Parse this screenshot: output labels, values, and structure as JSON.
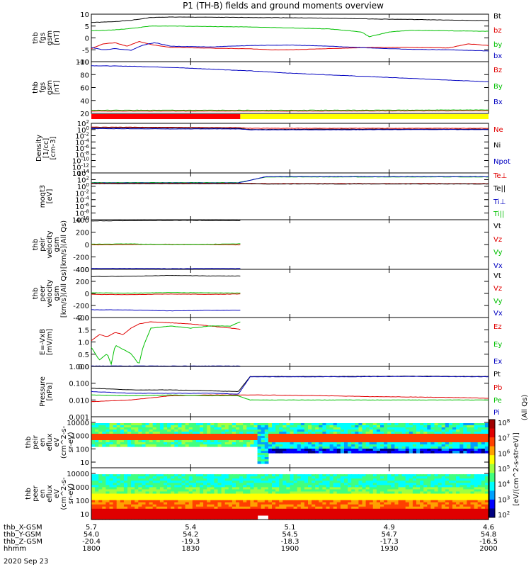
{
  "figure": {
    "title": "P1 (TH-B) fields and ground moments overview",
    "date": "2020 Sep 23",
    "colorbar_label": "[eV/(cm^2-s-str-eV)]",
    "colorbar_label_right": "(All Qs)",
    "colorbar_ticks": [
      "10^8",
      "10^7",
      "10^6",
      "10^5",
      "10^4",
      "10^3",
      "10^2"
    ]
  },
  "chart_data": [
    {
      "id": "fgs_gsm",
      "type": "line",
      "ylabel": [
        "thb",
        "fgs",
        "gsm",
        "[nT]"
      ],
      "ylim": [
        -10,
        10
      ],
      "yticks": [
        "10",
        "5",
        "0",
        "-5",
        "-10"
      ],
      "legend": [
        {
          "name": "Bt",
          "color": "#000000"
        },
        {
          "name": "bz",
          "color": "#e00000"
        },
        {
          "name": "by",
          "color": "#00c000"
        },
        {
          "name": "bx",
          "color": "#0000c0"
        }
      ],
      "series": [
        {
          "name": "Bt",
          "color": "#000000",
          "x": [
            0,
            0.05,
            0.1,
            0.15,
            0.2,
            0.3,
            0.4,
            0.5,
            0.6,
            0.7,
            0.8,
            0.9,
            1.0
          ],
          "y": [
            6.5,
            6.8,
            7.4,
            8.6,
            8.8,
            8.7,
            8.6,
            8.5,
            8.3,
            8.0,
            7.8,
            7.5,
            7.3
          ]
        },
        {
          "name": "bz",
          "color": "#e00000",
          "x": [
            0,
            0.03,
            0.06,
            0.09,
            0.12,
            0.15,
            0.2,
            0.3,
            0.4,
            0.45,
            0.5,
            0.6,
            0.7,
            0.8,
            0.9,
            0.95,
            1.0
          ],
          "y": [
            -4.5,
            -2.5,
            -2.0,
            -3.5,
            -1.5,
            -2.8,
            -4.0,
            -4.3,
            -4.6,
            -5.0,
            -5.0,
            -4.5,
            -4.0,
            -4.0,
            -4.2,
            -2.5,
            -3.2
          ]
        },
        {
          "name": "by",
          "color": "#00c000",
          "x": [
            0,
            0.05,
            0.1,
            0.15,
            0.2,
            0.3,
            0.4,
            0.5,
            0.6,
            0.68,
            0.7,
            0.75,
            0.8,
            0.9,
            1.0
          ],
          "y": [
            3.0,
            3.3,
            4.0,
            5.0,
            5.0,
            4.8,
            4.6,
            4.2,
            3.8,
            2.5,
            0.5,
            2.5,
            3.2,
            3.0,
            2.8
          ]
        },
        {
          "name": "bx",
          "color": "#0000c0",
          "x": [
            0,
            0.03,
            0.06,
            0.1,
            0.13,
            0.16,
            0.2,
            0.3,
            0.4,
            0.5,
            0.6,
            0.7,
            0.8,
            0.9,
            1.0
          ],
          "y": [
            -4.0,
            -5.0,
            -4.5,
            -5.2,
            -3.0,
            -2.0,
            -3.5,
            -3.8,
            -3.2,
            -3.0,
            -3.5,
            -4.2,
            -4.8,
            -5.0,
            -5.5
          ]
        }
      ]
    },
    {
      "id": "fgs_gsm_dsl",
      "type": "line",
      "ylabel": [
        "thb",
        "fgs",
        "gsm",
        "[nT]"
      ],
      "ylim": [
        10,
        100
      ],
      "yticks": [
        "100",
        "80",
        "60",
        "40",
        "20"
      ],
      "legend": [
        {
          "name": "Bz",
          "color": "#e00000"
        },
        {
          "name": "By",
          "color": "#00c000"
        },
        {
          "name": "Bx",
          "color": "#0000c0"
        }
      ],
      "series": [
        {
          "name": "Bx",
          "color": "#0000c0",
          "x": [
            0,
            0.1,
            0.2,
            0.3,
            0.4,
            0.5,
            0.6,
            0.7,
            0.8,
            0.9,
            1.0
          ],
          "y": [
            93,
            92,
            90,
            87,
            84,
            80,
            77,
            74,
            71,
            68,
            65
          ]
        },
        {
          "name": "By",
          "color": "#00c000",
          "x": [
            0,
            0.5,
            1.0
          ],
          "y": [
            15.5,
            15.5,
            16
          ]
        },
        {
          "name": "Bz",
          "color": "#e00000",
          "x": [
            0,
            0.5,
            1.0
          ],
          "y": [
            14,
            14,
            14.5
          ]
        }
      ]
    },
    {
      "id": "mode_bar",
      "type": "bar",
      "segments": [
        {
          "from": 0,
          "to": 0.375,
          "color": "#ff0000"
        },
        {
          "from": 0.375,
          "to": 1.0,
          "color": "#ffff00"
        }
      ]
    },
    {
      "id": "density",
      "type": "line",
      "ylabel": [
        "Density",
        "[1/cc]",
        "[cm-3]"
      ],
      "ylim": [
        -14,
        2
      ],
      "log": true,
      "yticks": [
        "10^2",
        "10^0",
        "10^-2",
        "10^-4",
        "10^-6",
        "10^-8",
        "10^-10",
        "10^-12",
        "10^-14"
      ],
      "legend": [
        {
          "name": "Ne",
          "color": "#e00000"
        },
        {
          "name": "Ni",
          "color": "#000000"
        },
        {
          "name": "Npot",
          "color": "#0000c0"
        }
      ],
      "series": [
        {
          "name": "Ne",
          "color": "#e00000",
          "x": [
            0,
            0.2,
            0.37,
            0.4,
            0.6,
            0.8,
            1.0
          ],
          "y": [
            0.8,
            0.7,
            0.6,
            0.4,
            0.4,
            0.4,
            0.4
          ]
        },
        {
          "name": "Ni",
          "color": "#000000",
          "x": [
            0,
            0.2,
            0.37,
            0.4,
            0.6,
            0.8,
            1.0
          ],
          "y": [
            0.6,
            0.5,
            0.4,
            0.0,
            0.1,
            0.1,
            0.1
          ]
        },
        {
          "name": "Npot",
          "color": "#0000c0",
          "x": [
            0,
            0.2,
            0.37,
            0.4,
            0.6,
            0.8,
            1.0
          ],
          "y": [
            0.3,
            0.2,
            0.2,
            -0.1,
            -0.1,
            0,
            0
          ]
        }
      ]
    },
    {
      "id": "temperature",
      "type": "line",
      "ylabel": [
        "moqt3",
        "[eV]"
      ],
      "ylim": [
        -10,
        4
      ],
      "log": true,
      "yticks": [
        "10^4",
        "10^2",
        "10^0",
        "10^-2",
        "10^-4",
        "10^-6",
        "10^-8",
        "10^-10"
      ],
      "legend": [
        {
          "name": "Te⊥",
          "color": "#e00000"
        },
        {
          "name": "Te||",
          "color": "#000000"
        },
        {
          "name": "Ti⊥",
          "color": "#0000c0"
        },
        {
          "name": "Ti||",
          "color": "#00c000"
        }
      ],
      "series": [
        {
          "name": "Ti||",
          "color": "#00c000",
          "x": [
            0,
            0.2,
            0.37,
            0.44,
            1.0
          ],
          "y": [
            1.1,
            1.1,
            1.1,
            2.8,
            2.8
          ]
        },
        {
          "name": "Ti⊥",
          "color": "#0000c0",
          "x": [
            0,
            0.2,
            0.37,
            0.44,
            1.0
          ],
          "y": [
            1.0,
            1.0,
            1.0,
            2.9,
            2.9
          ]
        },
        {
          "name": "Te⊥",
          "color": "#e00000",
          "x": [
            0,
            0.2,
            0.37,
            0.44,
            1.0
          ],
          "y": [
            0.9,
            0.9,
            0.9,
            0.8,
            0.8
          ]
        },
        {
          "name": "Te||",
          "color": "#000000",
          "x": [
            0,
            0.2,
            0.37,
            0.44,
            1.0
          ],
          "y": [
            0.8,
            0.8,
            0.8,
            0.7,
            0.7
          ]
        }
      ]
    },
    {
      "id": "peir_velocity",
      "type": "line",
      "ylabel": [
        "thb",
        "peir",
        "velocity",
        "gsm",
        "[km/s](All Qs)"
      ],
      "ylim": [
        -400,
        400
      ],
      "yticks": [
        "400",
        "200",
        "0",
        "-200",
        "-400"
      ],
      "legend": [
        {
          "name": "Vt",
          "color": "#000000"
        },
        {
          "name": "Vz",
          "color": "#e00000"
        },
        {
          "name": "Vy",
          "color": "#00c000"
        },
        {
          "name": "Vx",
          "color": "#0000c0"
        }
      ],
      "series": [
        {
          "name": "Vt",
          "color": "#000000",
          "x": [
            0,
            0.1,
            0.2,
            0.3,
            0.375
          ],
          "y": [
            380,
            385,
            390,
            388,
            385
          ]
        },
        {
          "name": "Vz",
          "color": "#e00000",
          "x": [
            0,
            0.1,
            0.2,
            0.3,
            0.375
          ],
          "y": [
            -5,
            0,
            5,
            0,
            -5
          ]
        },
        {
          "name": "Vy",
          "color": "#00c000",
          "x": [
            0,
            0.1,
            0.2,
            0.3,
            0.375
          ],
          "y": [
            5,
            10,
            0,
            5,
            10
          ]
        },
        {
          "name": "Vx",
          "color": "#0000c0",
          "x": [
            0,
            0.1,
            0.2,
            0.3,
            0.375
          ],
          "y": [
            -385,
            -385,
            -390,
            -385,
            -388
          ]
        }
      ]
    },
    {
      "id": "peer_velocity",
      "type": "line",
      "ylabel": [
        "thb",
        "peer",
        "velocity",
        "gsm",
        "[km/s](All Qs)"
      ],
      "ylim": [
        -400,
        400
      ],
      "yticks": [
        "400",
        "200",
        "0",
        "-200",
        "-400"
      ],
      "legend": [
        {
          "name": "Vt",
          "color": "#000000"
        },
        {
          "name": "Vz",
          "color": "#e00000"
        },
        {
          "name": "Vy",
          "color": "#00c000"
        },
        {
          "name": "Vx",
          "color": "#0000c0"
        }
      ],
      "series": [
        {
          "name": "Vt",
          "color": "#000000",
          "x": [
            0,
            0.1,
            0.2,
            0.3,
            0.375
          ],
          "y": [
            280,
            285,
            300,
            290,
            290
          ]
        },
        {
          "name": "Vz",
          "color": "#e00000",
          "x": [
            0,
            0.1,
            0.2,
            0.3,
            0.375
          ],
          "y": [
            -15,
            -20,
            -10,
            -15,
            -10
          ]
        },
        {
          "name": "Vy",
          "color": "#00c000",
          "x": [
            0,
            0.1,
            0.2,
            0.3,
            0.375
          ],
          "y": [
            10,
            5,
            15,
            10,
            5
          ]
        },
        {
          "name": "Vx",
          "color": "#0000c0",
          "x": [
            0,
            0.1,
            0.2,
            0.3,
            0.375
          ],
          "y": [
            -270,
            -275,
            -290,
            -280,
            -280
          ]
        }
      ]
    },
    {
      "id": "efield",
      "type": "line",
      "ylabel": [
        "E=-VxB",
        "[mV/m]"
      ],
      "ylim": [
        0,
        2.3
      ],
      "yticks": [
        "2.0",
        "1.5",
        "1.0",
        "0.5",
        "0.0"
      ],
      "legend": [
        {
          "name": "Ez",
          "color": "#e00000"
        },
        {
          "name": "Ey",
          "color": "#00c000"
        },
        {
          "name": "Ex",
          "color": "#0000c0"
        }
      ],
      "series": [
        {
          "name": "Ez",
          "color": "#e00000",
          "x": [
            0,
            0.02,
            0.04,
            0.06,
            0.08,
            0.1,
            0.12,
            0.15,
            0.2,
            0.25,
            0.3,
            0.35,
            0.375
          ],
          "y": [
            1.2,
            1.5,
            1.4,
            1.6,
            1.5,
            1.8,
            2.0,
            2.1,
            2.05,
            2.0,
            1.9,
            1.8,
            1.75
          ]
        },
        {
          "name": "Ey",
          "color": "#00c000",
          "x": [
            0,
            0.02,
            0.04,
            0.05,
            0.06,
            0.08,
            0.1,
            0.12,
            0.13,
            0.15,
            0.2,
            0.25,
            0.3,
            0.35,
            0.375
          ],
          "y": [
            0.9,
            0.3,
            0.6,
            0.1,
            1.0,
            0.8,
            0.6,
            0.1,
            0.9,
            1.8,
            1.9,
            1.8,
            1.9,
            1.9,
            2.1
          ]
        },
        {
          "name": "Ex",
          "color": "#0000c0",
          "x": [
            0,
            0.1,
            0.2,
            0.3,
            0.375
          ],
          "y": [
            0.02,
            0.02,
            0.02,
            0.02,
            0.02
          ]
        }
      ]
    },
    {
      "id": "pressure",
      "type": "line",
      "ylabel": [
        "Pressure",
        "[nPa]"
      ],
      "ylim": [
        -3,
        0
      ],
      "log": true,
      "yticks": [
        "1.000",
        "0.100",
        "0.010",
        "0.001"
      ],
      "legend": [
        {
          "name": "Pt",
          "color": "#000000"
        },
        {
          "name": "Pb",
          "color": "#e00000"
        },
        {
          "name": "Pe",
          "color": "#00c000"
        },
        {
          "name": "Pi",
          "color": "#0000c0"
        }
      ],
      "series": [
        {
          "name": "Pt",
          "color": "#000000",
          "x": [
            0,
            0.1,
            0.2,
            0.3,
            0.37,
            0.4,
            0.6,
            0.8,
            1.0
          ],
          "y": [
            -1.3,
            -1.4,
            -1.4,
            -1.45,
            -1.5,
            -0.6,
            -0.6,
            -0.58,
            -0.6
          ]
        },
        {
          "name": "Pb",
          "color": "#e00000",
          "x": [
            0,
            0.1,
            0.2,
            0.3,
            0.4,
            0.5,
            0.6,
            0.7,
            0.8,
            0.9,
            1.0
          ],
          "y": [
            -2.1,
            -2.0,
            -1.75,
            -1.7,
            -1.7,
            -1.72,
            -1.75,
            -1.8,
            -1.82,
            -1.85,
            -1.9
          ]
        },
        {
          "name": "Pe",
          "color": "#00c000",
          "x": [
            0,
            0.1,
            0.2,
            0.3,
            0.37,
            0.4,
            0.6,
            0.8,
            1.0
          ],
          "y": [
            -1.7,
            -1.75,
            -1.7,
            -1.75,
            -1.75,
            -2.0,
            -2.0,
            -2.0,
            -2.0
          ]
        },
        {
          "name": "Pi",
          "color": "#0000c0",
          "x": [
            0,
            0.1,
            0.2,
            0.3,
            0.37,
            0.4,
            0.6,
            0.8,
            1.0
          ],
          "y": [
            -1.5,
            -1.6,
            -1.6,
            -1.6,
            -1.65,
            -0.62,
            -0.62,
            -0.6,
            -0.62
          ]
        }
      ]
    },
    {
      "id": "peir_spectrogram",
      "type": "heatmap",
      "ylabel": [
        "thb",
        "peir",
        "en",
        "eflux",
        "eV",
        "(cm^2-s-",
        "sr-eV)"
      ],
      "yticks": [
        "10000",
        "1000",
        "100",
        "10"
      ],
      "ylim": [
        3,
        10000
      ]
    },
    {
      "id": "peer_spectrogram",
      "type": "heatmap",
      "ylabel": [
        "thb",
        "peer",
        "en",
        "eflux",
        "eV",
        "(cm^2-s-",
        "sr-eV)"
      ],
      "yticks": [
        "10000",
        "1000",
        "100",
        "10"
      ],
      "ylim": [
        5,
        20000
      ]
    }
  ],
  "ephemeris": {
    "labels": [
      "thb_X-GSM",
      "thb_Y-GSM",
      "thb_Z-GSM",
      "hhmm"
    ],
    "rows": [
      [
        "5.7",
        "5.4",
        "5.1",
        "4.9",
        "4.6"
      ],
      [
        "54.0",
        "54.2",
        "54.5",
        "54.7",
        "54.8"
      ],
      [
        "-20.4",
        "-19.3",
        "-18.3",
        "-17.3",
        "-16.5"
      ],
      [
        "1800",
        "1830",
        "1900",
        "1930",
        "2000"
      ]
    ]
  }
}
